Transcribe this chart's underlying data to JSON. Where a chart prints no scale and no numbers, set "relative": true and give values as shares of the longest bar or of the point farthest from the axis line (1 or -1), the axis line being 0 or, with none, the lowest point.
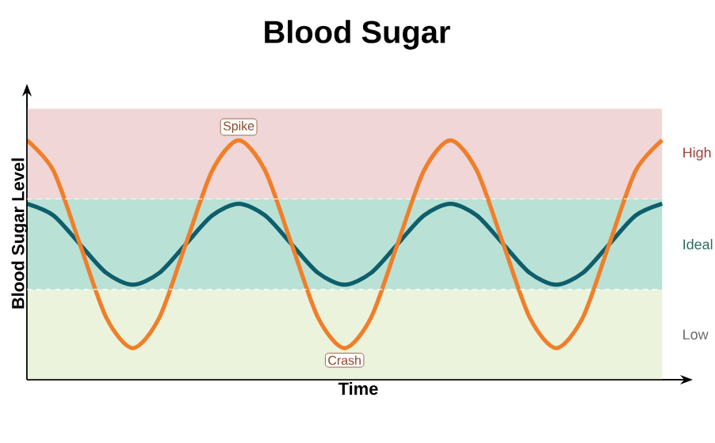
{
  "chart_data": {
    "type": "line",
    "title": "Blood Sugar",
    "xlabel": "Time",
    "ylabel": "Blood Sugar Level",
    "relative": true,
    "marker": "none",
    "line_style": "solid",
    "categories": [
      null,
      null,
      null,
      null,
      null,
      null,
      null,
      null,
      null,
      null,
      null,
      null,
      null,
      null,
      null,
      null,
      null,
      null,
      null,
      null,
      null,
      null,
      null,
      null,
      null
    ],
    "series": [
      {
        "color": "#0e5e6b",
        "values": [
          0.735,
          0.686,
          0.566,
          0.446,
          0.397,
          0.446,
          0.566,
          0.686,
          0.735,
          0.686,
          0.566,
          0.446,
          0.397,
          0.446,
          0.566,
          0.686,
          0.735,
          0.686,
          0.566,
          0.446,
          0.397,
          0.446,
          0.566,
          0.686,
          0.735
        ]
      },
      {
        "color": "#f07f2a",
        "values": [
          1,
          0.873,
          0.566,
          0.259,
          0.132,
          0.259,
          0.566,
          0.873,
          1,
          0.873,
          0.566,
          0.259,
          0.132,
          0.259,
          0.566,
          0.873,
          1,
          0.873,
          0.566,
          0.259,
          0.132,
          0.259,
          0.566,
          0.873,
          1
        ]
      }
    ],
    "bands": [
      {
        "axis": "y",
        "from": 0.755,
        "to": 1.132,
        "label": "High",
        "color": "#f0d6d6"
      },
      {
        "axis": "y",
        "from": 0.377,
        "to": 0.755,
        "label": "Ideal",
        "color": "#b9e1d6"
      },
      {
        "axis": "y",
        "from": 0,
        "to": 0.377,
        "label": "Low",
        "color": "#ecf3dc"
      }
    ],
    "ref_lines": [
      {
        "axis": "y",
        "value": 0.755,
        "color": "#ffffff",
        "line_style": "dashed"
      },
      {
        "axis": "y",
        "value": 0.377,
        "color": "#ffffff",
        "line_style": "dashed"
      }
    ],
    "annotations": [
      "Spike",
      "Crash"
    ]
  }
}
